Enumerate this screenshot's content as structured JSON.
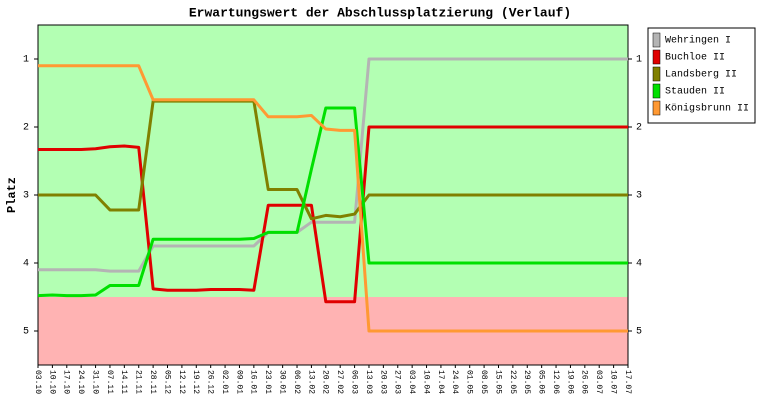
{
  "chart_data": {
    "type": "line",
    "title": "Erwartungswert der Abschlussplatzierung (Verlauf)",
    "y_label": "Platz",
    "categories": [
      "03.10",
      "10.10",
      "17.10",
      "24.10",
      "31.10",
      "07.11",
      "14.11",
      "21.11",
      "28.11",
      "05.12",
      "12.12",
      "19.12",
      "26.12",
      "02.01",
      "09.01",
      "16.01",
      "23.01",
      "30.01",
      "06.02",
      "13.02",
      "20.02",
      "27.02",
      "06.03",
      "13.03",
      "20.03",
      "27.03",
      "03.04",
      "10.04",
      "17.04",
      "24.04",
      "01.05",
      "08.05",
      "15.05",
      "22.05",
      "29.05",
      "05.06",
      "12.06",
      "19.06",
      "26.06",
      "03.07",
      "10.07",
      "17.07"
    ],
    "series": [
      {
        "name": "Wehringen I",
        "color": "#b4b4b4",
        "values": [
          4.1,
          4.1,
          4.1,
          4.1,
          4.1,
          4.12,
          4.12,
          4.12,
          3.75,
          3.75,
          3.75,
          3.75,
          3.75,
          3.75,
          3.75,
          3.75,
          3.55,
          3.55,
          3.55,
          3.4,
          3.4,
          3.4,
          3.4,
          1,
          1,
          1,
          1,
          1,
          1,
          1,
          1,
          1,
          1,
          1,
          1,
          1,
          1,
          1,
          1,
          1,
          1,
          1
        ]
      },
      {
        "name": "Buchloe II",
        "color": "#e00000",
        "values": [
          2.33,
          2.33,
          2.33,
          2.33,
          2.32,
          2.29,
          2.28,
          2.3,
          4.38,
          4.4,
          4.4,
          4.4,
          4.39,
          4.39,
          4.39,
          4.4,
          3.15,
          3.15,
          3.15,
          3.15,
          4.57,
          4.57,
          4.57,
          2,
          2,
          2,
          2,
          2,
          2,
          2,
          2,
          2,
          2,
          2,
          2,
          2,
          2,
          2,
          2,
          2,
          2,
          2
        ]
      },
      {
        "name": "Landsberg II",
        "color": "#808000",
        "values": [
          3,
          3,
          3,
          3,
          3,
          3.22,
          3.22,
          3.22,
          1.62,
          1.62,
          1.62,
          1.62,
          1.62,
          1.62,
          1.62,
          1.62,
          2.92,
          2.92,
          2.92,
          3.35,
          3.3,
          3.32,
          3.28,
          3,
          3,
          3,
          3,
          3,
          3,
          3,
          3,
          3,
          3,
          3,
          3,
          3,
          3,
          3,
          3,
          3,
          3,
          3
        ]
      },
      {
        "name": "Stauden II",
        "color": "#00e000",
        "values": [
          4.48,
          4.47,
          4.48,
          4.48,
          4.47,
          4.33,
          4.33,
          4.33,
          3.65,
          3.65,
          3.65,
          3.65,
          3.65,
          3.65,
          3.65,
          3.64,
          3.55,
          3.55,
          3.55,
          2.62,
          1.72,
          1.72,
          1.72,
          4,
          4,
          4,
          4,
          4,
          4,
          4,
          4,
          4,
          4,
          4,
          4,
          4,
          4,
          4,
          4,
          4,
          4,
          4
        ]
      },
      {
        "name": "Königsbrunn II",
        "color": "#ff9933",
        "values": [
          1.1,
          1.1,
          1.1,
          1.1,
          1.1,
          1.1,
          1.1,
          1.1,
          1.6,
          1.6,
          1.6,
          1.6,
          1.6,
          1.6,
          1.6,
          1.6,
          1.85,
          1.85,
          1.85,
          1.83,
          2.03,
          2.05,
          2.05,
          5,
          5,
          5,
          5,
          5,
          5,
          5,
          5,
          5,
          5,
          5,
          5,
          5,
          5,
          5,
          5,
          5,
          5,
          5
        ]
      }
    ],
    "ylim": [
      0.5,
      5.5
    ],
    "yticks": [
      1,
      2,
      3,
      4,
      5
    ],
    "y2lim": [
      0.5,
      5.5
    ],
    "y2ticks": [
      1,
      2,
      3,
      4,
      5
    ],
    "y_inverted": true,
    "background_bands": [
      {
        "from": 0.5,
        "to": 4.5,
        "color": "#b3ffb3"
      },
      {
        "from": 4.5,
        "to": 5.5,
        "color": "#ffb3b3"
      }
    ],
    "legend": "right"
  }
}
